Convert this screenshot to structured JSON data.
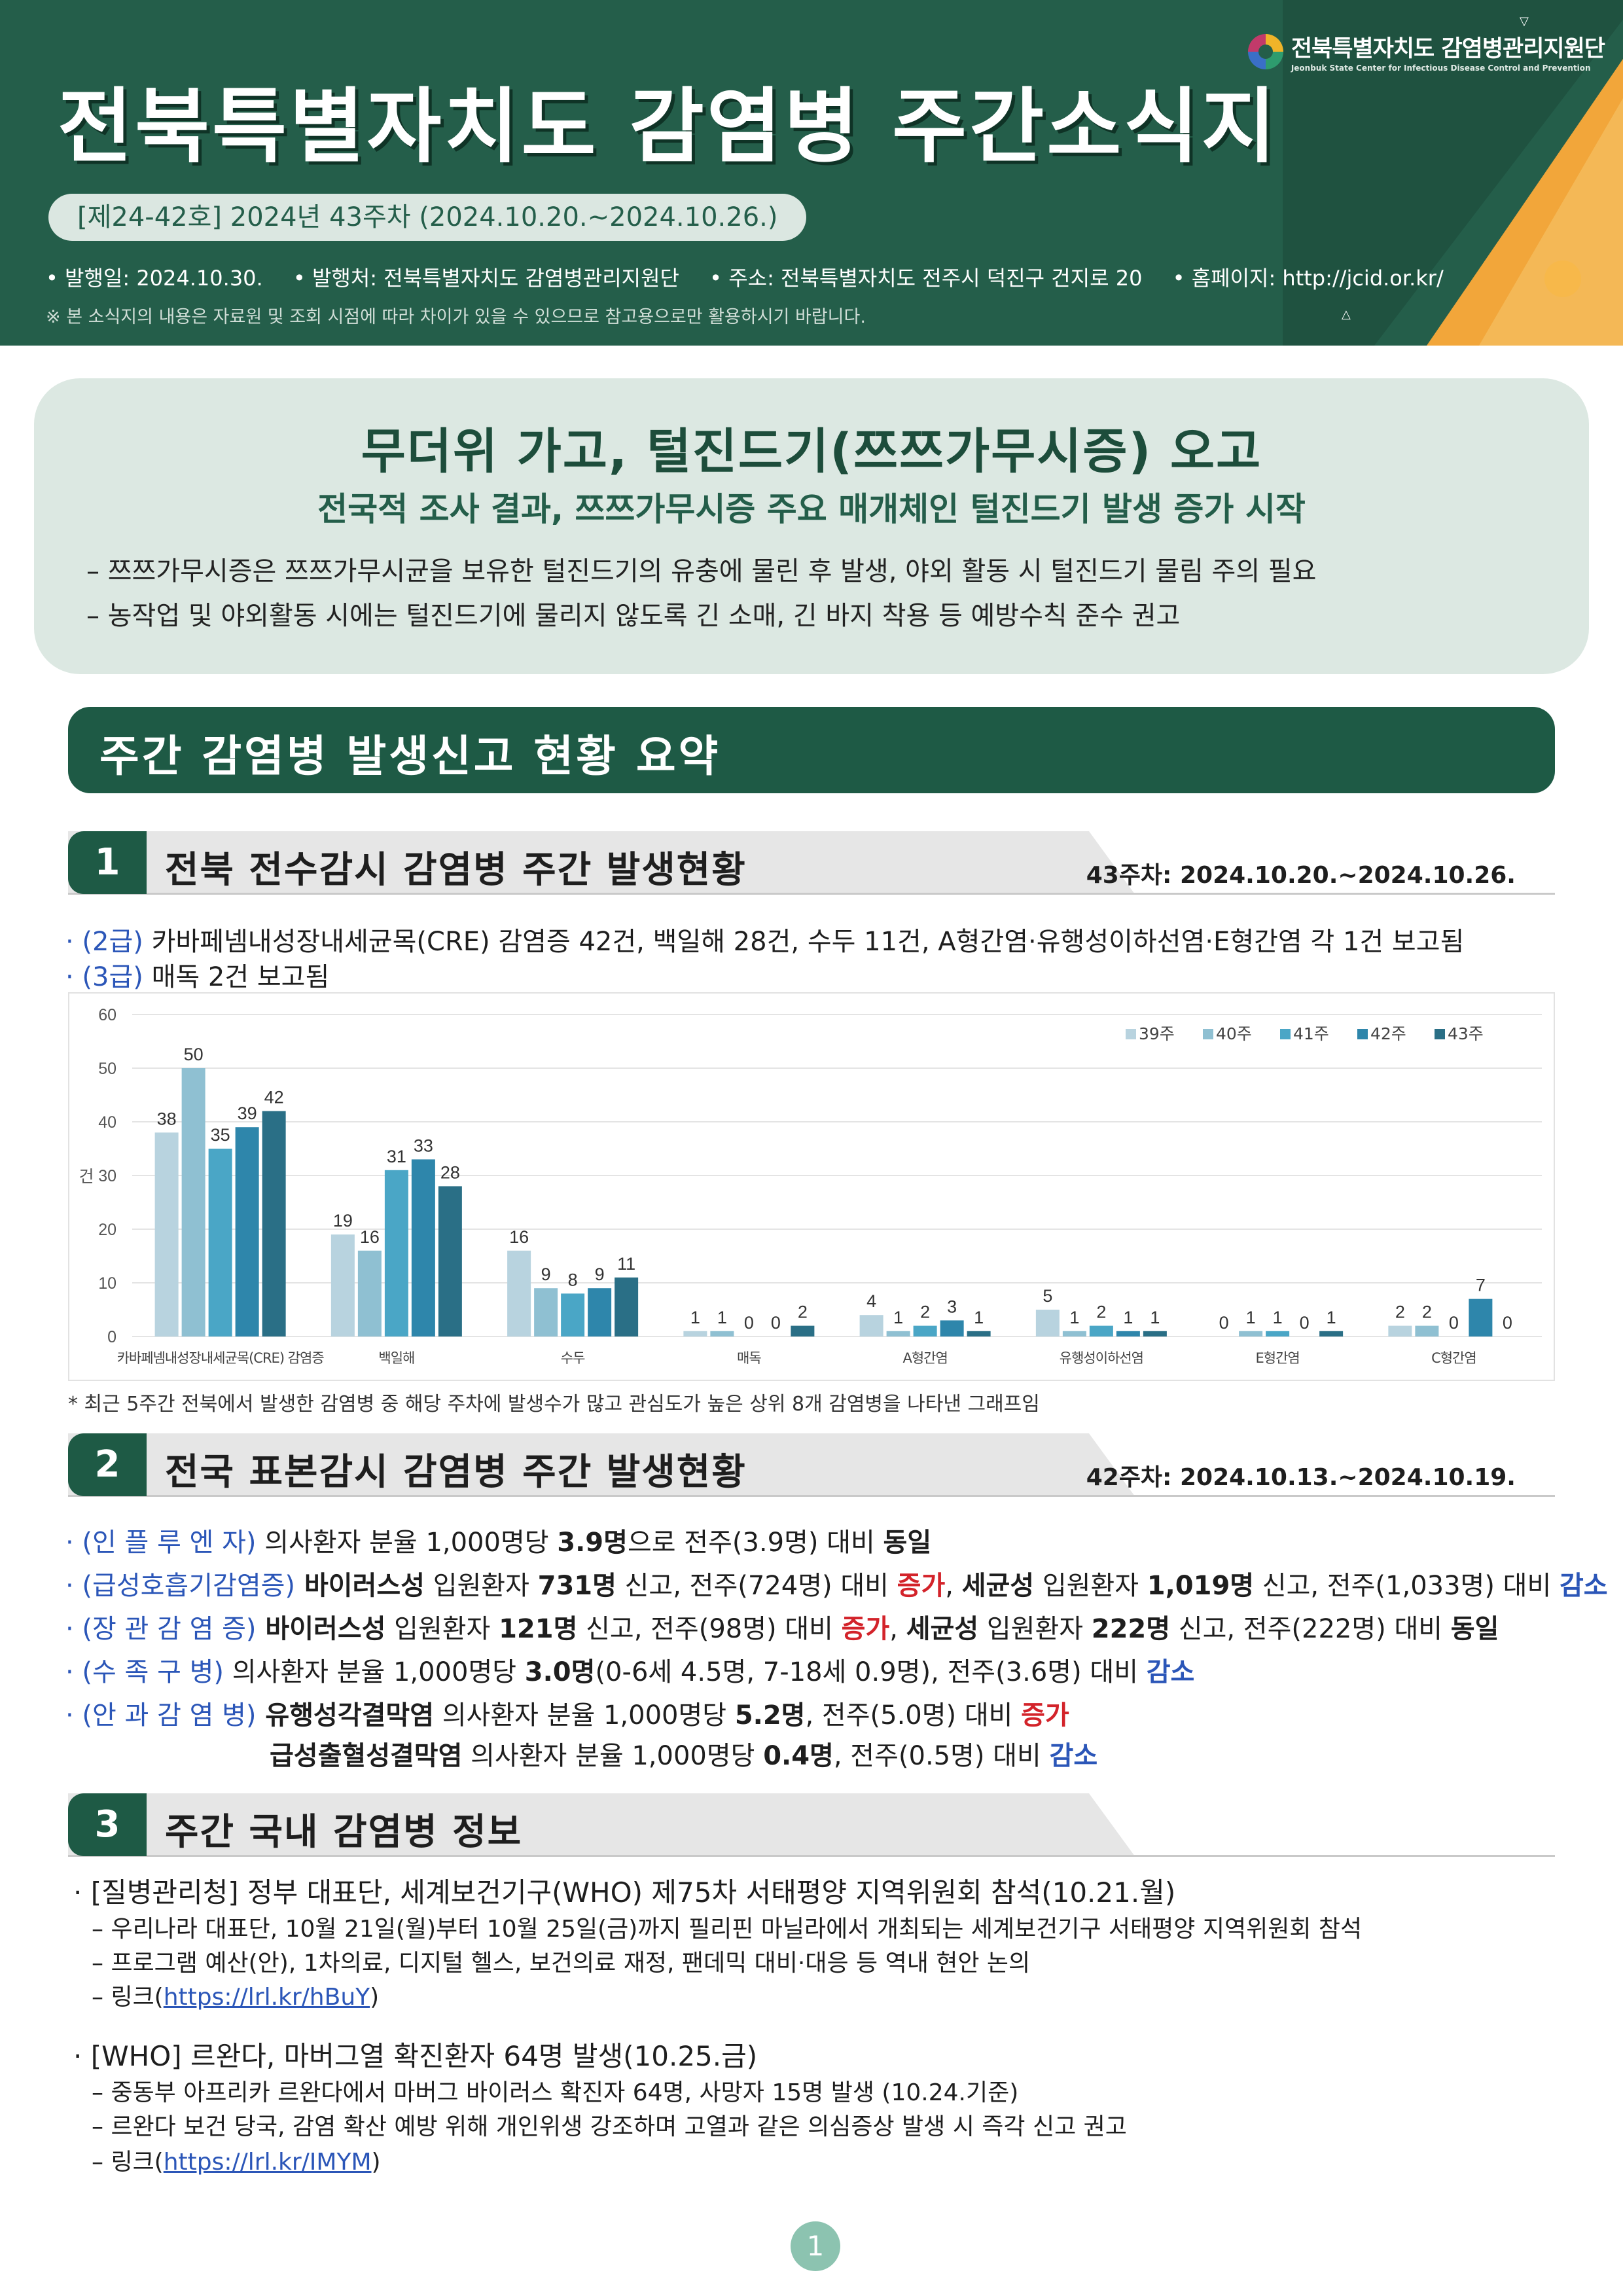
{
  "header": {
    "logo_ko": "전북특별자치도 감염병관리지원단",
    "logo_en": "Jeonbuk State Center for Infectious Disease Control and Prevention",
    "title": "전북특별자치도  감염병  주간소식지",
    "issue": "[제24-42호]  2024년  43주차  (2024.10.20.~2024.10.26.)",
    "pub_date": "• 발행일:  2024.10.30.",
    "publisher": "• 발행처:  전북특별자치도  감염병관리지원단",
    "address": "• 주소:  전북특별자치도  전주시  덕진구  건지로  20",
    "homepage": "• 홈페이지:  http://jcid.or.kr/",
    "note": "※  본  소식지의  내용은  자료원  및  조회  시점에  따라  차이가  있을  수  있으므로  참고용으로만  활용하시기  바랍니다."
  },
  "headline": {
    "title": "무더위  가고,  털진드기(쯔쯔가무시증)  오고",
    "subtitle": "전국적  조사  결과,  쯔쯔가무시증  주요  매개체인  털진드기  발생  증가  시작",
    "bullets": [
      "–  쯔쯔가무시증은  쯔쯔가무시균을  보유한  털진드기의  유충에  물린  후  발생,  야외  활동  시  털진드기  물림  주의  필요",
      "–  농작업  및  야외활동  시에는  털진드기에  물리지  않도록  긴  소매,  긴  바지  착용  등  예방수칙  준수  권고"
    ]
  },
  "summary_banner": "주간  감염병  발생신고  현황  요약",
  "section1": {
    "num": "1",
    "title": "전북  전수감시  감염병  주간  발생현황",
    "date": "43주차:  2024.10.20.~2024.10.26.",
    "line1_label": "· (2급)",
    "line1_text": " 카바페넴내성장내세균목(CRE)  감염증  42건,  백일해  28건,  수두  11건,  A형간염·유행성이하선염·E형간염  각  1건  보고됨",
    "line2_label": "· (3급)",
    "line2_text": " 매독  2건  보고됨",
    "chart_note": "*  최근  5주간  전북에서  발생한  감염병  중  해당  주차에  발생수가  많고  관심도가  높은  상위  8개  감염병을  나타낸  그래프임"
  },
  "chart_data": {
    "type": "bar",
    "ylabel": "건",
    "ylim": [
      0,
      60
    ],
    "yticks": [
      0,
      10,
      20,
      30,
      40,
      50,
      60
    ],
    "categories": [
      "카바페넴내성장내세균목(CRE) 감염증",
      "백일해",
      "수두",
      "매독",
      "A형간염",
      "유행성이하선염",
      "E형간염",
      "C형간염"
    ],
    "legend_position": "top-right",
    "series": [
      {
        "name": "39주",
        "color": "#b8d3df",
        "values": [
          38,
          19,
          16,
          1,
          4,
          5,
          0,
          2
        ]
      },
      {
        "name": "40주",
        "color": "#8fc0d2",
        "values": [
          50,
          16,
          9,
          1,
          1,
          1,
          1,
          2
        ]
      },
      {
        "name": "41주",
        "color": "#4aa6c6",
        "values": [
          35,
          31,
          8,
          0,
          2,
          2,
          1,
          0
        ]
      },
      {
        "name": "42주",
        "color": "#2e86ab",
        "values": [
          39,
          33,
          9,
          0,
          3,
          1,
          0,
          7
        ]
      },
      {
        "name": "43주",
        "color": "#2a6f86",
        "values": [
          42,
          28,
          11,
          2,
          1,
          1,
          1,
          0
        ]
      }
    ]
  },
  "section2": {
    "num": "2",
    "title": "전국  표본감시  감염병  주간  발생현황",
    "date": "42주차:  2024.10.13.~2024.10.19.",
    "influenza": {
      "label": "· (인  플  루  엔  자)",
      "t1": " 의사환자  분율  1,000명당  ",
      "v1": "3.9명",
      "t2": "으로  전주(3.9명)  대비  ",
      "trend": "동일"
    },
    "respiratory": {
      "label": "· (급성호흡기감염증)",
      "s1": " 바이러스성",
      "t1": "  입원환자  ",
      "v1": "731명",
      "t2": "  신고,  전주(724명)  대비  ",
      "trend1": "증가",
      "t3": ",  ",
      "s2": "세균성",
      "t4": "  입원환자  ",
      "v2": "1,019명",
      "t5": "  신고,  전주(1,033명)  대비  ",
      "trend2": "감소"
    },
    "enteric": {
      "label": "· (장  관  감  염  증)",
      "s1": " 바이러스성",
      "t1": "  입원환자  ",
      "v1": "121명",
      "t2": "  신고,  전주(98명)  대비  ",
      "trend1": "증가",
      "t3": ",  ",
      "s2": "세균성",
      "t4": "  입원환자  ",
      "v2": "222명",
      "t5": "  신고,  전주(222명)  대비  ",
      "trend2": "동일"
    },
    "hfmd": {
      "label": "· (수    족    구    병)",
      "t1": " 의사환자  분율  1,000명당  ",
      "v1": "3.0명",
      "t2": "(0-6세  4.5명,  7-18세  0.9명),  전주(3.6명)  대비  ",
      "trend": "감소"
    },
    "eye": {
      "label": "· (안  과  감  염  병)",
      "s1": " 유행성각결막염",
      "t1": "  의사환자  분율  1,000명당  ",
      "v1": "5.2명",
      "t2": ",  전주(5.0명)  대비  ",
      "trend1": "증가",
      "s2": "급성출혈성결막염",
      "t3": "  의사환자  분율  1,000명당  ",
      "v2": "0.4명",
      "t4": ",  전주(0.5명)  대비  ",
      "trend2": "감소"
    }
  },
  "section3": {
    "num": "3",
    "title": "주간  국내  감염병  정보",
    "item1": {
      "title": "·  [질병관리청]  정부  대표단,  세계보건기구(WHO)  제75차  서태평양  지역위원회  참석(10.21.월)",
      "b1": "–  우리나라  대표단,  10월  21일(월)부터  10월  25일(금)까지  필리핀  마닐라에서  개최되는  세계보건기구  서태평양  지역위원회  참석",
      "b2": "–  프로그램  예산(안),  1차의료,  디지털  헬스,  보건의료  재정,  팬데믹  대비·대응  등  역내  현안  논의",
      "link_prefix": "–  링크(",
      "link": "https://lrl.kr/hBuY",
      "link_suffix": ")"
    },
    "item2": {
      "title": "·  [WHO]  르완다,  마버그열  확진환자  64명  발생(10.25.금)",
      "b1": "–  중동부  아프리카  르완다에서  마버그  바이러스  확진자  64명,  사망자  15명  발생  (10.24.기준)",
      "b2": "–  르완다  보건  당국,  감염  확산  예방  위해  개인위생  강조하며  고열과  같은  의심증상  발생  시  즉각  신고  권고",
      "link_prefix": "–  링크(",
      "link": "https://lrl.kr/IMYM",
      "link_suffix": ")"
    }
  },
  "footer": {
    "page": "1"
  }
}
